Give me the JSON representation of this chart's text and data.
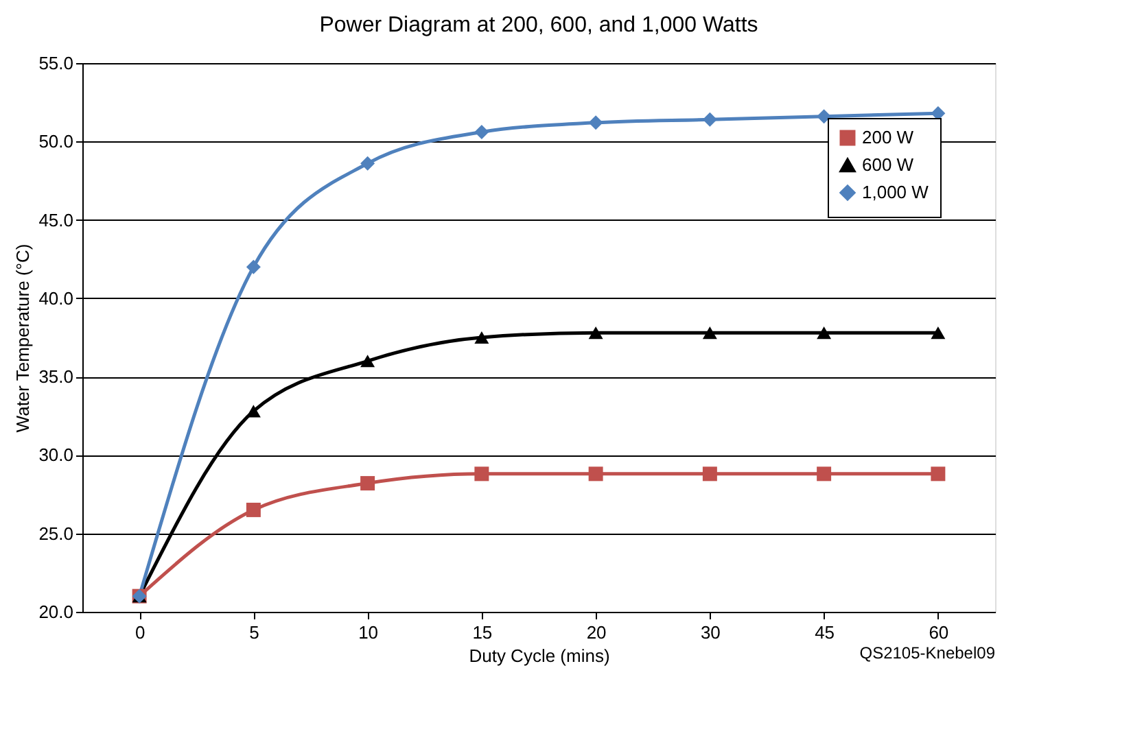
{
  "chart_data": {
    "type": "line",
    "title": "Power Diagram at 200, 600, and 1,000 Watts",
    "xlabel": "Duty Cycle (mins)",
    "ylabel": "Water Temperature (°C)",
    "categories": [
      "0",
      "5",
      "10",
      "15",
      "20",
      "30",
      "45",
      "60"
    ],
    "series": [
      {
        "name": "200 W",
        "color": "#c0504d",
        "marker": "square",
        "values": [
          21.0,
          26.5,
          28.2,
          28.8,
          28.8,
          28.8,
          28.8,
          28.8
        ]
      },
      {
        "name": "600 W",
        "color": "#000000",
        "marker": "triangle",
        "values": [
          21.0,
          32.8,
          36.0,
          37.5,
          37.8,
          37.8,
          37.8,
          37.8
        ]
      },
      {
        "name": "1,000 W",
        "color": "#4f81bd",
        "marker": "diamond",
        "values": [
          21.0,
          42.0,
          48.6,
          50.6,
          51.2,
          51.4,
          51.6,
          51.8
        ]
      }
    ],
    "ylim": [
      20,
      55
    ],
    "yticks": [
      {
        "value": 20,
        "label": "20.0"
      },
      {
        "value": 25,
        "label": "25.0"
      },
      {
        "value": 30,
        "label": "30.0"
      },
      {
        "value": 35,
        "label": "35.0"
      },
      {
        "value": 40,
        "label": "40.0"
      },
      {
        "value": 45,
        "label": "45.0"
      },
      {
        "value": 50,
        "label": "50.0"
      },
      {
        "value": 55,
        "label": "55.0"
      }
    ],
    "grid": "y",
    "legend": "top right",
    "line_style": "solid",
    "annotations": [
      "QS2105-Knebel09"
    ]
  }
}
